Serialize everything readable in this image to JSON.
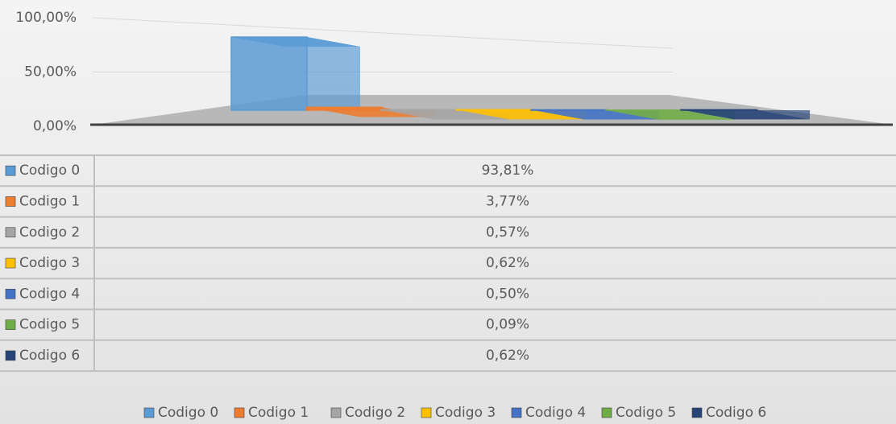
{
  "chart_data": {
    "type": "bar",
    "series": [
      {
        "name": "Codigo 0",
        "color": "#5b9bd5",
        "values": [
          93.81
        ],
        "value_labels": [
          "93,81%"
        ]
      },
      {
        "name": "Codigo 1",
        "color": "#ed7d31",
        "values": [
          3.77
        ],
        "value_labels": [
          "3,77%"
        ]
      },
      {
        "name": "Codigo 2",
        "color": "#a5a5a5",
        "values": [
          0.57
        ],
        "value_labels": [
          "0,57%"
        ]
      },
      {
        "name": "Codigo 3",
        "color": "#ffc000",
        "values": [
          0.62
        ],
        "value_labels": [
          "0,62%"
        ]
      },
      {
        "name": "Codigo 4",
        "color": "#4472c4",
        "values": [
          0.5
        ],
        "value_labels": [
          "0,50%"
        ]
      },
      {
        "name": "Codigo 5",
        "color": "#70ad47",
        "values": [
          0.09
        ],
        "value_labels": [
          "0,09%"
        ]
      },
      {
        "name": "Codigo 6",
        "color": "#264478",
        "values": [
          0.62
        ],
        "value_labels": [
          "0,62%"
        ]
      }
    ],
    "ylim": [
      0,
      100
    ],
    "yticks": [
      {
        "value": 0,
        "label": "0,00%"
      },
      {
        "value": 50,
        "label": "50,00%"
      },
      {
        "value": 100,
        "label": "100,00%"
      }
    ],
    "grid": true
  }
}
